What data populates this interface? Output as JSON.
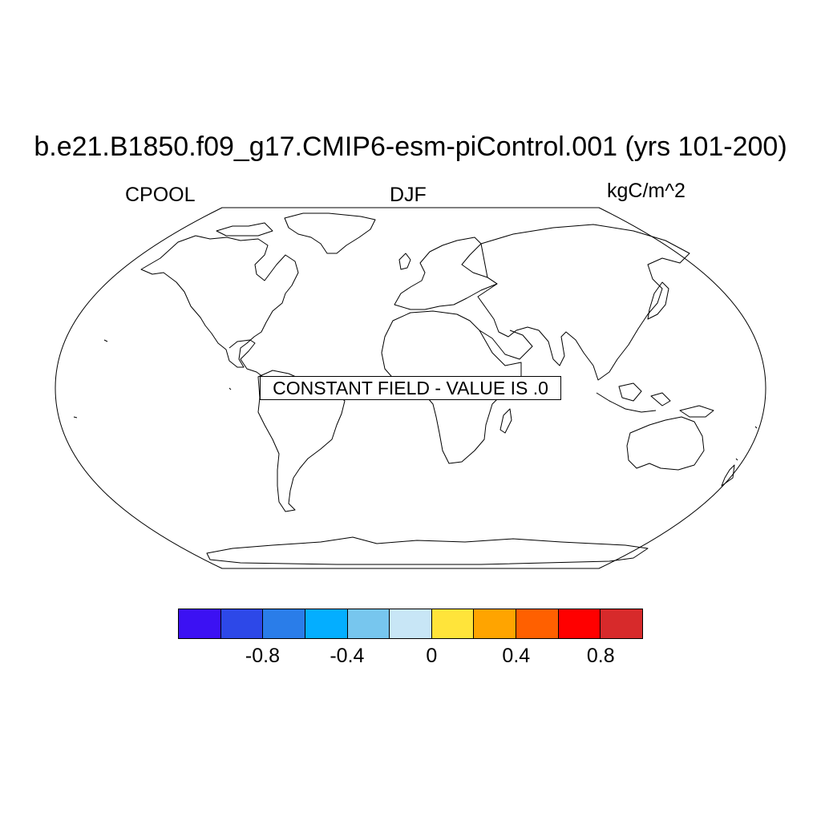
{
  "title": "b.e21.B1850.f09_g17.CMIP6-esm-piControl.001 (yrs 101-200)",
  "subtitle_left": "CPOOL",
  "subtitle_center": "DJF",
  "subtitle_right": "kgC/m^2",
  "map": {
    "projection": "robinson",
    "message": "CONSTANT FIELD - VALUE IS .0"
  },
  "colorbar": {
    "colors": [
      "#3c11f3",
      "#2d48e8",
      "#2a7de9",
      "#04aeff",
      "#77c6ee",
      "#c8e6f6",
      "#ffe43a",
      "#ffa400",
      "#ff6000",
      "#ff0000",
      "#d72a2b"
    ],
    "labels": [
      "-0.8",
      "-0.4",
      "0",
      "0.4",
      "0.8"
    ]
  }
}
